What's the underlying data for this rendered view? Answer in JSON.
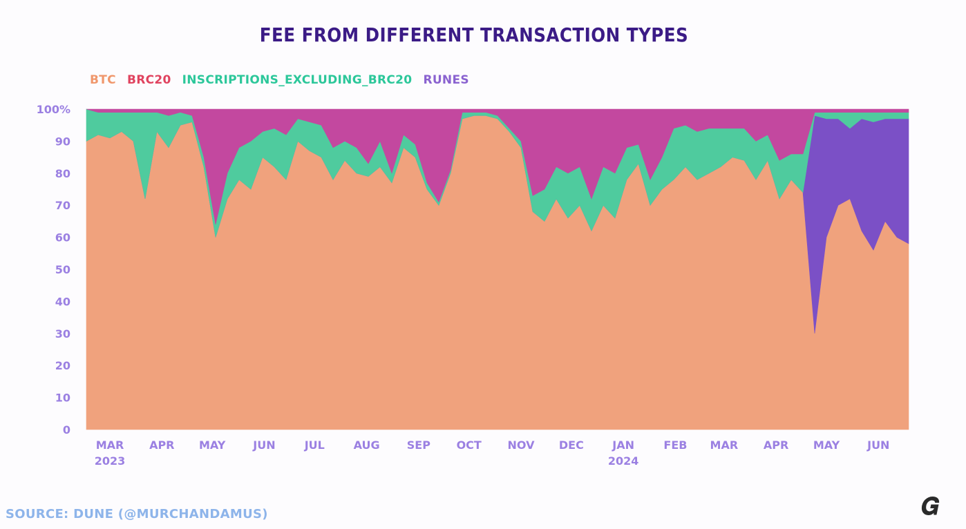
{
  "chart_data": {
    "type": "area",
    "stacked": true,
    "normalized": true,
    "title": "FEE FROM DIFFERENT TRANSACTION TYPES",
    "xlabel": "",
    "ylabel": "",
    "ylim": [
      0,
      100
    ],
    "y_ticks": [
      "0",
      "10",
      "20",
      "30",
      "40",
      "50",
      "60",
      "70",
      "80",
      "90",
      "100%"
    ],
    "x_range": [
      "2023-02-18",
      "2024-06-22"
    ],
    "x_ticks": [
      {
        "date": "2023-03-01",
        "label": "MAR",
        "year": "2023"
      },
      {
        "date": "2023-04-01",
        "label": "APR"
      },
      {
        "date": "2023-05-01",
        "label": "MAY"
      },
      {
        "date": "2023-06-01",
        "label": "JUN"
      },
      {
        "date": "2023-07-01",
        "label": "JUL"
      },
      {
        "date": "2023-08-01",
        "label": "AUG"
      },
      {
        "date": "2023-09-01",
        "label": "SEP"
      },
      {
        "date": "2023-10-01",
        "label": "OCT"
      },
      {
        "date": "2023-11-01",
        "label": "NOV"
      },
      {
        "date": "2023-12-01",
        "label": "DEC"
      },
      {
        "date": "2024-01-01",
        "label": "JAN",
        "year": "2024"
      },
      {
        "date": "2024-02-01",
        "label": "FEB"
      },
      {
        "date": "2024-03-01",
        "label": "MAR"
      },
      {
        "date": "2024-04-01",
        "label": "APR"
      },
      {
        "date": "2024-05-01",
        "label": "MAY"
      },
      {
        "date": "2024-06-01",
        "label": "JUN"
      }
    ],
    "grid": false,
    "legend_placement": "top-left",
    "x_start": "2023-02-18",
    "x_step_days": 7,
    "series": [
      {
        "name": "BTC",
        "color": "#f0a27d",
        "legend_color": "#f0976c",
        "values": [
          90,
          92,
          91,
          93,
          90,
          72,
          93,
          88,
          95,
          96,
          82,
          60,
          72,
          78,
          75,
          85,
          82,
          78,
          90,
          87,
          85,
          78,
          84,
          80,
          79,
          82,
          77,
          88,
          85,
          75,
          70,
          80,
          97,
          98,
          98,
          97,
          93,
          88,
          68,
          65,
          72,
          66,
          70,
          62,
          70,
          66,
          78,
          83,
          70,
          75,
          78,
          82,
          78,
          80,
          82,
          85,
          84,
          78,
          84,
          72,
          78,
          74,
          30,
          60,
          70,
          72,
          62,
          56,
          65,
          60,
          58
        ]
      },
      {
        "name": "Runes",
        "color": "#7b50c6",
        "legend_color": "#8a62d0",
        "values": [
          0,
          0,
          0,
          0,
          0,
          0,
          0,
          0,
          0,
          0,
          0,
          0,
          0,
          0,
          0,
          0,
          0,
          0,
          0,
          0,
          0,
          0,
          0,
          0,
          0,
          0,
          0,
          0,
          0,
          0,
          0,
          0,
          0,
          0,
          0,
          0,
          0,
          0,
          0,
          0,
          0,
          0,
          0,
          0,
          0,
          0,
          0,
          0,
          0,
          0,
          0,
          0,
          0,
          0,
          0,
          0,
          0,
          0,
          0,
          0,
          0,
          0,
          68,
          37,
          27,
          22,
          35,
          40,
          32,
          37,
          39
        ]
      },
      {
        "name": "INSCRIPTIONS_EXCLUDING_BRC20",
        "color": "#4fcb9e",
        "legend_color": "#2cc79a",
        "values": [
          10,
          7,
          8,
          6,
          9,
          27,
          6,
          10,
          4,
          2,
          3,
          4,
          8,
          10,
          15,
          8,
          12,
          14,
          7,
          9,
          10,
          10,
          6,
          8,
          4,
          8,
          3,
          4,
          4,
          2,
          1,
          1,
          2,
          1,
          1,
          1,
          1,
          2,
          5,
          10,
          10,
          14,
          12,
          10,
          12,
          14,
          10,
          6,
          8,
          10,
          16,
          13,
          15,
          14,
          12,
          9,
          10,
          12,
          8,
          12,
          8,
          12,
          1,
          2,
          2,
          5,
          2,
          3,
          2,
          2,
          2
        ]
      },
      {
        "name": "BRC20",
        "color": "#c3489f",
        "legend_color": "#e0435f",
        "values": [
          0,
          1,
          1,
          1,
          1,
          1,
          1,
          2,
          1,
          2,
          15,
          36,
          20,
          12,
          10,
          7,
          6,
          8,
          3,
          4,
          5,
          12,
          10,
          12,
          17,
          10,
          20,
          8,
          11,
          23,
          29,
          19,
          1,
          1,
          1,
          2,
          6,
          10,
          27,
          25,
          18,
          20,
          18,
          28,
          18,
          20,
          12,
          11,
          22,
          15,
          6,
          5,
          7,
          6,
          6,
          6,
          6,
          10,
          8,
          16,
          14,
          14,
          1,
          1,
          1,
          1,
          1,
          1,
          1,
          1,
          1
        ]
      }
    ]
  },
  "legend_order": [
    "BTC",
    "BRC20",
    "INSCRIPTIONS_EXCLUDING_BRC20",
    "Runes"
  ],
  "legend_labels": {
    "btc": "BTC",
    "brc20": "BRC20",
    "inscriptions": "INSCRIPTIONS_EXCLUDING_BRC20",
    "runes": "RUNES"
  },
  "source": "SOURCE: DUNE (@MURCHANDAMUS)",
  "colors": {
    "title": "#3b1b86",
    "axis_text": "#9b80e2",
    "source": "#8db4ea"
  },
  "logo_icon": "gate-learn-logo"
}
